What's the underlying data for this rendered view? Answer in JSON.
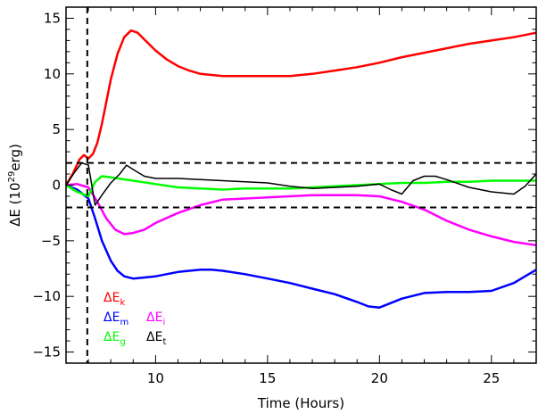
{
  "chart_data": {
    "type": "line",
    "xlabel": "Time (Hours)",
    "ylabel": {
      "prefix": "ΔE (10",
      "sup": "29",
      "suffix": "erg)"
    },
    "xlim": [
      6,
      27
    ],
    "ylim": [
      -16,
      16
    ],
    "xticks": [
      10,
      15,
      20,
      25
    ],
    "yticks": [
      -15,
      -10,
      -5,
      0,
      5,
      10,
      15
    ],
    "grid": false,
    "legend_placement": "bottom-left",
    "vlines": [
      {
        "x": 6.95,
        "style": "dashed",
        "color": "#000000"
      }
    ],
    "hlines": [
      {
        "y": 2,
        "style": "dashed",
        "color": "#000000"
      },
      {
        "y": -2,
        "style": "dashed",
        "color": "#000000"
      }
    ],
    "series": [
      {
        "legend": {
          "main": "ΔE",
          "sub": "k"
        },
        "color": "#ff0000",
        "x": [
          6.0,
          6.3,
          6.6,
          6.8,
          7.0,
          7.2,
          7.4,
          7.6,
          7.8,
          8.0,
          8.3,
          8.6,
          8.9,
          9.2,
          9.5,
          10.0,
          10.5,
          11.0,
          11.5,
          12.0,
          13.0,
          14.0,
          15.0,
          16.0,
          17.0,
          18.0,
          19.0,
          20.0,
          21.0,
          22.0,
          23.0,
          24.0,
          25.0,
          26.0,
          27.0
        ],
        "y": [
          0.0,
          1.0,
          2.3,
          2.7,
          2.4,
          2.8,
          3.8,
          5.5,
          7.5,
          9.5,
          11.8,
          13.3,
          13.9,
          13.7,
          13.1,
          12.1,
          11.3,
          10.7,
          10.3,
          10.0,
          9.8,
          9.8,
          9.8,
          9.8,
          10.0,
          10.3,
          10.6,
          11.0,
          11.5,
          11.9,
          12.3,
          12.7,
          13.0,
          13.3,
          13.7
        ]
      },
      {
        "legend": {
          "main": "ΔE",
          "sub": "m"
        },
        "color": "#0000ff",
        "x": [
          6.0,
          6.5,
          7.0,
          7.3,
          7.6,
          8.0,
          8.3,
          8.6,
          9.0,
          10.0,
          11.0,
          12.0,
          12.5,
          13.0,
          14.0,
          15.0,
          16.0,
          17.0,
          18.0,
          19.0,
          19.5,
          20.0,
          20.5,
          21.0,
          22.0,
          23.0,
          24.0,
          25.0,
          26.0,
          27.0
        ],
        "y": [
          0.0,
          -0.4,
          -1.2,
          -3.0,
          -5.0,
          -6.8,
          -7.7,
          -8.2,
          -8.4,
          -8.2,
          -7.8,
          -7.6,
          -7.6,
          -7.7,
          -8.0,
          -8.4,
          -8.8,
          -9.3,
          -9.8,
          -10.5,
          -10.9,
          -11.0,
          -10.6,
          -10.2,
          -9.7,
          -9.6,
          -9.6,
          -9.5,
          -8.8,
          -7.6
        ]
      },
      {
        "legend": {
          "main": "ΔE",
          "sub": "i"
        },
        "color": "#ff00ff",
        "x": [
          6.0,
          6.5,
          7.0,
          7.4,
          7.8,
          8.2,
          8.6,
          9.0,
          9.5,
          10.0,
          11.0,
          12.0,
          13.0,
          14.0,
          15.0,
          16.0,
          17.0,
          18.0,
          19.0,
          20.0,
          21.0,
          22.0,
          23.0,
          24.0,
          25.0,
          26.0,
          27.0
        ],
        "y": [
          0.0,
          0.1,
          -0.2,
          -1.5,
          -3.0,
          -4.0,
          -4.4,
          -4.3,
          -4.0,
          -3.4,
          -2.5,
          -1.8,
          -1.3,
          -1.2,
          -1.1,
          -1.0,
          -0.9,
          -0.9,
          -0.9,
          -1.0,
          -1.5,
          -2.2,
          -3.2,
          -4.0,
          -4.6,
          -5.1,
          -5.4
        ]
      },
      {
        "legend": {
          "main": "ΔE",
          "sub": "g"
        },
        "color": "#00ff00",
        "x": [
          6.0,
          6.5,
          7.0,
          7.3,
          7.6,
          8.0,
          9.0,
          10.0,
          11.0,
          12.0,
          13.0,
          14.0,
          15.0,
          16.0,
          17.0,
          18.0,
          19.0,
          20.0,
          21.0,
          22.0,
          23.0,
          24.0,
          25.0,
          26.0,
          27.0
        ],
        "y": [
          0.0,
          -0.6,
          -1.0,
          0.3,
          0.8,
          0.7,
          0.4,
          0.1,
          -0.2,
          -0.3,
          -0.4,
          -0.3,
          -0.3,
          -0.3,
          -0.2,
          -0.1,
          0.0,
          0.1,
          0.2,
          0.2,
          0.3,
          0.3,
          0.4,
          0.4,
          0.4
        ]
      },
      {
        "legend": {
          "main": "ΔE",
          "sub": "t"
        },
        "color": "#000000",
        "x": [
          6.0,
          6.4,
          6.7,
          7.0,
          7.3,
          7.6,
          8.0,
          8.4,
          8.7,
          9.0,
          9.5,
          10.0,
          11.0,
          12.0,
          13.0,
          14.0,
          15.0,
          16.0,
          17.0,
          18.0,
          19.0,
          20.0,
          20.5,
          21.0,
          21.5,
          22.0,
          22.5,
          23.0,
          24.0,
          25.0,
          26.0,
          26.5,
          27.0
        ],
        "y": [
          0.0,
          1.2,
          2.0,
          1.8,
          -1.8,
          -0.9,
          0.2,
          1.0,
          1.8,
          1.4,
          0.8,
          0.6,
          0.6,
          0.5,
          0.4,
          0.3,
          0.2,
          -0.1,
          -0.3,
          -0.2,
          -0.1,
          0.1,
          -0.4,
          -0.8,
          0.4,
          0.8,
          0.8,
          0.5,
          -0.2,
          -0.6,
          -0.8,
          -0.1,
          1.0
        ]
      }
    ],
    "legend_layout": [
      {
        "series": 0,
        "row": 0,
        "col": 0
      },
      {
        "series": 1,
        "row": 1,
        "col": 0
      },
      {
        "series": 2,
        "row": 1,
        "col": 1
      },
      {
        "series": 3,
        "row": 2,
        "col": 0
      },
      {
        "series": 4,
        "row": 2,
        "col": 1
      }
    ]
  }
}
